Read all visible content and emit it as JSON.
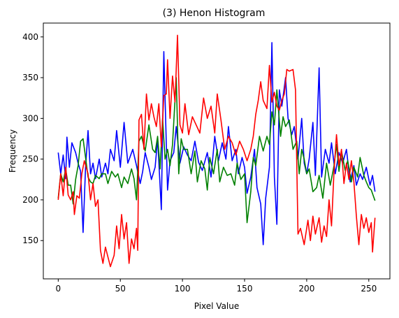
{
  "chart_data": {
    "type": "line",
    "title": "(3) Henon Histogram",
    "xlabel": "Pixel Value",
    "ylabel": "Frequency",
    "xlim": [
      -12,
      267
    ],
    "ylim": [
      103,
      417
    ],
    "xticks": [
      0,
      50,
      100,
      150,
      200,
      250
    ],
    "yticks": [
      150,
      200,
      250,
      300,
      350,
      400
    ],
    "grid": false,
    "series": [
      {
        "color": "#0000ff",
        "keypoints": [
          [
            0,
            258
          ],
          [
            2,
            232
          ],
          [
            4,
            255
          ],
          [
            6,
            226
          ],
          [
            7,
            277
          ],
          [
            9,
            240
          ],
          [
            11,
            270
          ],
          [
            14,
            258
          ],
          [
            16,
            245
          ],
          [
            18,
            235
          ],
          [
            20,
            160
          ],
          [
            22,
            240
          ],
          [
            24,
            285
          ],
          [
            26,
            232
          ],
          [
            28,
            245
          ],
          [
            30,
            226
          ],
          [
            33,
            250
          ],
          [
            35,
            228
          ],
          [
            38,
            245
          ],
          [
            40,
            232
          ],
          [
            42,
            262
          ],
          [
            45,
            248
          ],
          [
            47,
            285
          ],
          [
            50,
            240
          ],
          [
            53,
            295
          ],
          [
            56,
            245
          ],
          [
            60,
            262
          ],
          [
            63,
            242
          ],
          [
            66,
            220
          ],
          [
            68,
            235
          ],
          [
            70,
            258
          ],
          [
            73,
            240
          ],
          [
            75,
            225
          ],
          [
            78,
            240
          ],
          [
            80,
            275
          ],
          [
            83,
            188
          ],
          [
            85,
            382
          ],
          [
            88,
            212
          ],
          [
            90,
            248
          ],
          [
            93,
            258
          ],
          [
            95,
            290
          ],
          [
            98,
            245
          ],
          [
            101,
            265
          ],
          [
            104,
            255
          ],
          [
            107,
            248
          ],
          [
            110,
            272
          ],
          [
            113,
            246
          ],
          [
            116,
            236
          ],
          [
            120,
            258
          ],
          [
            123,
            228
          ],
          [
            126,
            278
          ],
          [
            129,
            248
          ],
          [
            132,
            270
          ],
          [
            135,
            250
          ],
          [
            137,
            290
          ],
          [
            140,
            248
          ],
          [
            143,
            262
          ],
          [
            145,
            232
          ],
          [
            148,
            252
          ],
          [
            150,
            240
          ],
          [
            152,
            208
          ],
          [
            155,
            228
          ],
          [
            158,
            262
          ],
          [
            160,
            215
          ],
          [
            163,
            195
          ],
          [
            165,
            145
          ],
          [
            167,
            202
          ],
          [
            170,
            240
          ],
          [
            172,
            393
          ],
          [
            174,
            228
          ],
          [
            176,
            170
          ],
          [
            178,
            335
          ],
          [
            180,
            315
          ],
          [
            183,
            350
          ],
          [
            185,
            300
          ],
          [
            188,
            280
          ],
          [
            190,
            290
          ],
          [
            193,
            250
          ],
          [
            196,
            300
          ],
          [
            198,
            245
          ],
          [
            200,
            232
          ],
          [
            202,
            250
          ],
          [
            205,
            295
          ],
          [
            207,
            230
          ],
          [
            210,
            362
          ],
          [
            212,
            228
          ],
          [
            215,
            262
          ],
          [
            218,
            245
          ],
          [
            220,
            270
          ],
          [
            223,
            232
          ],
          [
            226,
            258
          ],
          [
            229,
            245
          ],
          [
            232,
            262
          ],
          [
            235,
            222
          ],
          [
            238,
            242
          ],
          [
            240,
            218
          ],
          [
            243,
            232
          ],
          [
            245,
            225
          ],
          [
            248,
            240
          ],
          [
            251,
            218
          ],
          [
            253,
            230
          ],
          [
            255,
            210
          ]
        ]
      },
      {
        "color": "#008000",
        "keypoints": [
          [
            0,
            202
          ],
          [
            2,
            232
          ],
          [
            4,
            222
          ],
          [
            6,
            238
          ],
          [
            8,
            218
          ],
          [
            10,
            218
          ],
          [
            12,
            195
          ],
          [
            14,
            225
          ],
          [
            16,
            242
          ],
          [
            18,
            272
          ],
          [
            20,
            275
          ],
          [
            22,
            252
          ],
          [
            24,
            228
          ],
          [
            26,
            222
          ],
          [
            28,
            220
          ],
          [
            30,
            230
          ],
          [
            33,
            226
          ],
          [
            35,
            232
          ],
          [
            38,
            232
          ],
          [
            40,
            220
          ],
          [
            43,
            235
          ],
          [
            46,
            228
          ],
          [
            48,
            232
          ],
          [
            51,
            215
          ],
          [
            53,
            228
          ],
          [
            56,
            220
          ],
          [
            59,
            238
          ],
          [
            61,
            226
          ],
          [
            63,
            200
          ],
          [
            65,
            272
          ],
          [
            67,
            278
          ],
          [
            70,
            260
          ],
          [
            73,
            292
          ],
          [
            76,
            262
          ],
          [
            78,
            258
          ],
          [
            80,
            278
          ],
          [
            82,
            238
          ],
          [
            84,
            300
          ],
          [
            86,
            250
          ],
          [
            88,
            262
          ],
          [
            90,
            242
          ],
          [
            92,
            268
          ],
          [
            95,
            350
          ],
          [
            97,
            232
          ],
          [
            99,
            275
          ],
          [
            101,
            262
          ],
          [
            104,
            262
          ],
          [
            107,
            232
          ],
          [
            110,
            260
          ],
          [
            112,
            222
          ],
          [
            115,
            248
          ],
          [
            118,
            238
          ],
          [
            120,
            212
          ],
          [
            122,
            252
          ],
          [
            125,
            232
          ],
          [
            128,
            262
          ],
          [
            130,
            222
          ],
          [
            133,
            240
          ],
          [
            136,
            230
          ],
          [
            139,
            232
          ],
          [
            142,
            218
          ],
          [
            144,
            245
          ],
          [
            147,
            225
          ],
          [
            150,
            232
          ],
          [
            152,
            172
          ],
          [
            155,
            210
          ],
          [
            157,
            252
          ],
          [
            159,
            242
          ],
          [
            162,
            278
          ],
          [
            165,
            260
          ],
          [
            168,
            278
          ],
          [
            170,
            268
          ],
          [
            172,
            308
          ],
          [
            174,
            292
          ],
          [
            176,
            335
          ],
          [
            179,
            278
          ],
          [
            181,
            302
          ],
          [
            183,
            290
          ],
          [
            186,
            298
          ],
          [
            189,
            262
          ],
          [
            192,
            272
          ],
          [
            194,
            232
          ],
          [
            196,
            262
          ],
          [
            198,
            250
          ],
          [
            200,
            232
          ],
          [
            202,
            238
          ],
          [
            205,
            210
          ],
          [
            208,
            215
          ],
          [
            210,
            230
          ],
          [
            213,
            202
          ],
          [
            216,
            245
          ],
          [
            219,
            218
          ],
          [
            222,
            242
          ],
          [
            224,
            268
          ],
          [
            226,
            235
          ],
          [
            228,
            260
          ],
          [
            231,
            236
          ],
          [
            233,
            248
          ],
          [
            236,
            222
          ],
          [
            238,
            240
          ],
          [
            241,
            228
          ],
          [
            243,
            252
          ],
          [
            246,
            230
          ],
          [
            248,
            222
          ],
          [
            250,
            215
          ],
          [
            252,
            212
          ],
          [
            255,
            199
          ]
        ]
      },
      {
        "color": "#ff0000",
        "keypoints": [
          [
            0,
            200
          ],
          [
            2,
            232
          ],
          [
            4,
            205
          ],
          [
            6,
            240
          ],
          [
            8,
            206
          ],
          [
            10,
            200
          ],
          [
            12,
            210
          ],
          [
            13,
            182
          ],
          [
            15,
            205
          ],
          [
            17,
            202
          ],
          [
            19,
            232
          ],
          [
            21,
            248
          ],
          [
            24,
            232
          ],
          [
            26,
            200
          ],
          [
            28,
            220
          ],
          [
            30,
            192
          ],
          [
            32,
            200
          ],
          [
            34,
            138
          ],
          [
            36,
            122
          ],
          [
            38,
            142
          ],
          [
            40,
            130
          ],
          [
            42,
            118
          ],
          [
            45,
            132
          ],
          [
            47,
            168
          ],
          [
            49,
            140
          ],
          [
            51,
            182
          ],
          [
            53,
            152
          ],
          [
            55,
            172
          ],
          [
            57,
            122
          ],
          [
            59,
            152
          ],
          [
            61,
            140
          ],
          [
            63,
            165
          ],
          [
            64,
            138
          ],
          [
            65,
            298
          ],
          [
            67,
            305
          ],
          [
            69,
            262
          ],
          [
            71,
            330
          ],
          [
            73,
            298
          ],
          [
            75,
            318
          ],
          [
            77,
            302
          ],
          [
            79,
            290
          ],
          [
            81,
            318
          ],
          [
            83,
            265
          ],
          [
            85,
            328
          ],
          [
            87,
            330
          ],
          [
            88,
            372
          ],
          [
            90,
            300
          ],
          [
            92,
            352
          ],
          [
            94,
            320
          ],
          [
            96,
            402
          ],
          [
            98,
            292
          ],
          [
            100,
            282
          ],
          [
            102,
            318
          ],
          [
            105,
            280
          ],
          [
            108,
            302
          ],
          [
            111,
            292
          ],
          [
            114,
            282
          ],
          [
            117,
            325
          ],
          [
            120,
            300
          ],
          [
            123,
            315
          ],
          [
            126,
            282
          ],
          [
            128,
            330
          ],
          [
            131,
            298
          ],
          [
            134,
            262
          ],
          [
            137,
            278
          ],
          [
            140,
            270
          ],
          [
            143,
            255
          ],
          [
            146,
            272
          ],
          [
            149,
            262
          ],
          [
            152,
            248
          ],
          [
            155,
            262
          ],
          [
            157,
            278
          ],
          [
            159,
            305
          ],
          [
            161,
            322
          ],
          [
            163,
            345
          ],
          [
            165,
            322
          ],
          [
            168,
            312
          ],
          [
            170,
            365
          ],
          [
            172,
            320
          ],
          [
            174,
            332
          ],
          [
            176,
            315
          ],
          [
            178,
            310
          ],
          [
            180,
            322
          ],
          [
            182,
            330
          ],
          [
            184,
            360
          ],
          [
            186,
            358
          ],
          [
            189,
            360
          ],
          [
            191,
            335
          ],
          [
            193,
            158
          ],
          [
            195,
            165
          ],
          [
            198,
            145
          ],
          [
            201,
            175
          ],
          [
            203,
            150
          ],
          [
            205,
            180
          ],
          [
            207,
            158
          ],
          [
            210,
            178
          ],
          [
            212,
            148
          ],
          [
            214,
            168
          ],
          [
            216,
            155
          ],
          [
            218,
            200
          ],
          [
            220,
            168
          ],
          [
            222,
            235
          ],
          [
            224,
            280
          ],
          [
            226,
            242
          ],
          [
            228,
            262
          ],
          [
            230,
            220
          ],
          [
            232,
            245
          ],
          [
            234,
            225
          ],
          [
            236,
            248
          ],
          [
            238,
            222
          ],
          [
            240,
            180
          ],
          [
            242,
            145
          ],
          [
            244,
            182
          ],
          [
            246,
            165
          ],
          [
            248,
            178
          ],
          [
            250,
            160
          ],
          [
            252,
            172
          ],
          [
            253,
            136
          ],
          [
            255,
            178
          ]
        ]
      }
    ]
  }
}
